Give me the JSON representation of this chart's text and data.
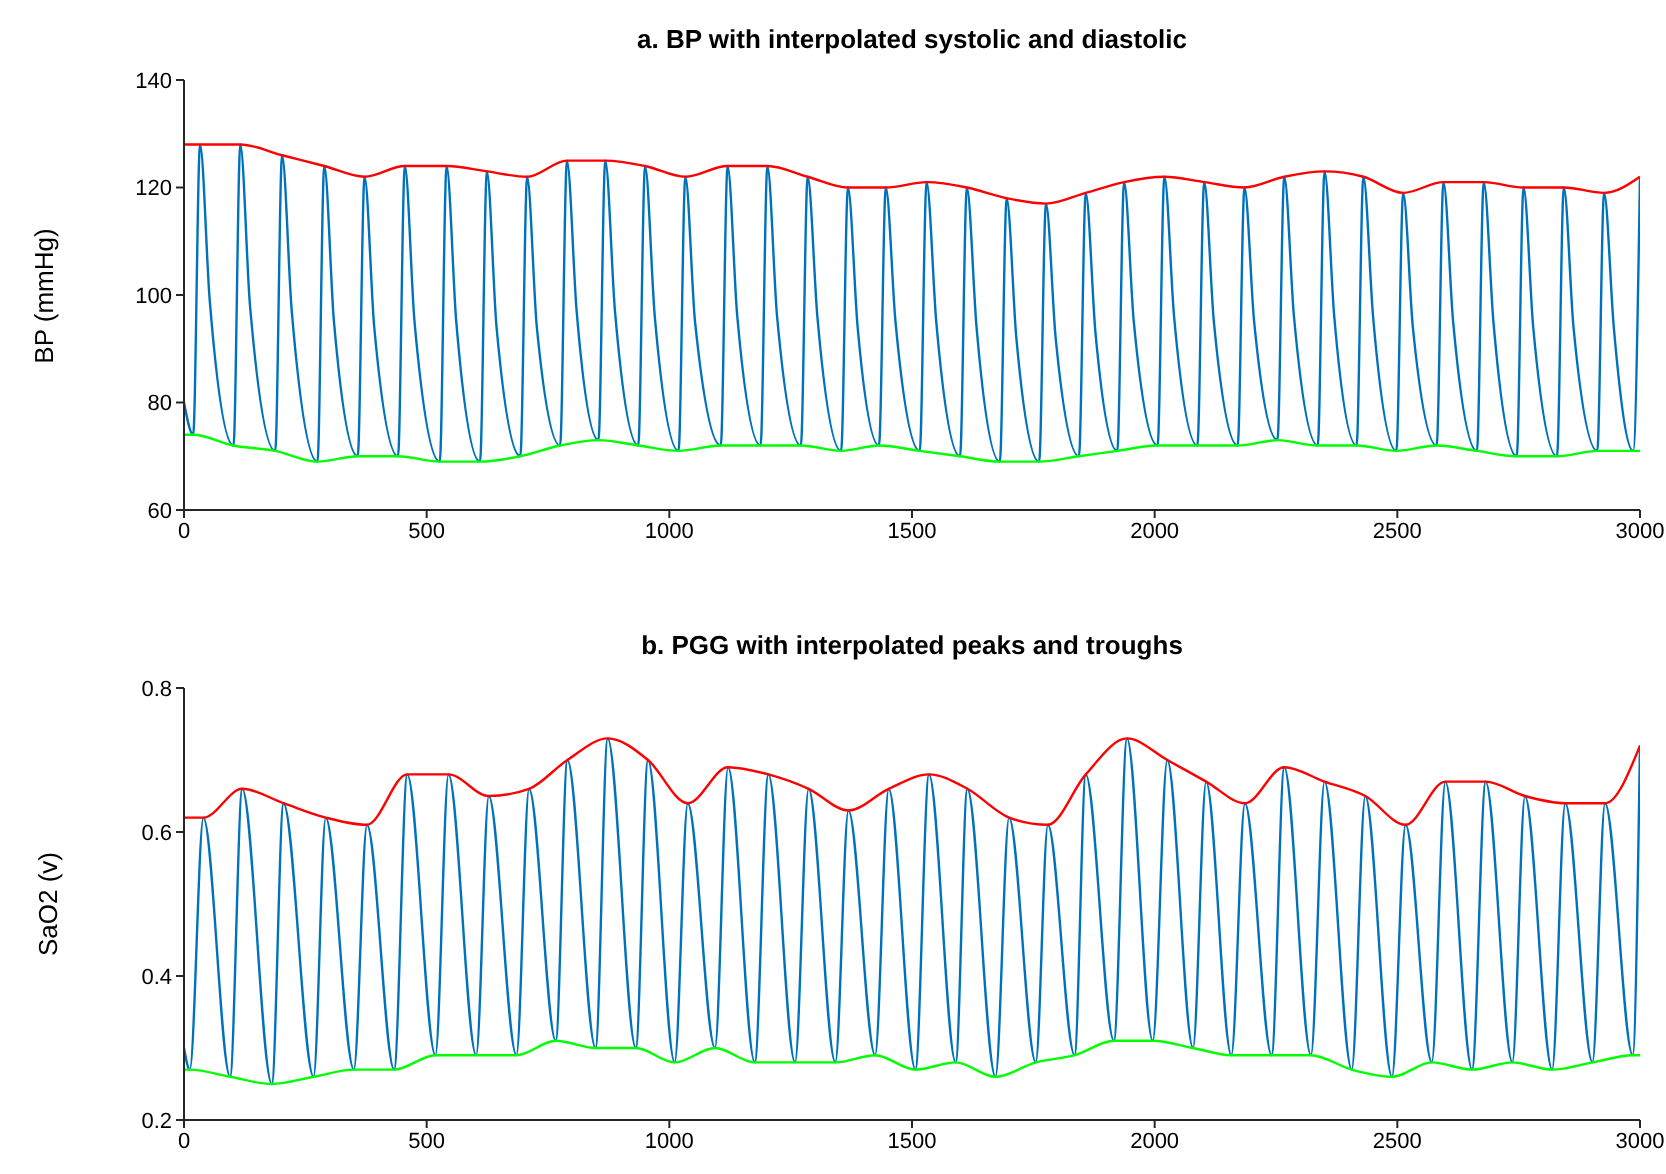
{
  "chart_data": [
    {
      "type": "line",
      "title": "a. BP with interpolated systolic and diastolic",
      "ylabel": "BP (mmHg)",
      "xlim": [
        0,
        3000
      ],
      "xticks": [
        0,
        500,
        1000,
        1500,
        2000,
        2500,
        3000
      ],
      "ylim": [
        60,
        140
      ],
      "yticks": [
        60,
        80,
        100,
        120,
        140
      ],
      "series": [
        {
          "color": "#0072bd",
          "x": [
            0,
            19,
            33,
            53,
            102,
            116,
            136,
            188,
            202,
            222,
            275,
            289,
            309,
            358,
            372,
            392,
            441,
            455,
            475,
            527,
            541,
            561,
            610,
            624,
            644,
            693,
            707,
            727,
            775,
            789,
            809,
            854,
            868,
            888,
            936,
            950,
            970,
            1019,
            1033,
            1053,
            1106,
            1120,
            1140,
            1188,
            1202,
            1222,
            1271,
            1285,
            1305,
            1354,
            1368,
            1388,
            1432,
            1446,
            1466,
            1516,
            1530,
            1550,
            1599,
            1613,
            1633,
            1681,
            1695,
            1715,
            1762,
            1776,
            1796,
            1844,
            1858,
            1878,
            1923,
            1937,
            1957,
            2006,
            2020,
            2040,
            2088,
            2102,
            2122,
            2171,
            2185,
            2205,
            2253,
            2267,
            2287,
            2336,
            2350,
            2370,
            2416,
            2430,
            2450,
            2498,
            2512,
            2532,
            2581,
            2595,
            2615,
            2664,
            2678,
            2698,
            2746,
            2760,
            2780,
            2829,
            2843,
            2863,
            2912,
            2926,
            2946,
            2986,
            3000
          ],
          "values": [
            80,
            74,
            128,
            99,
            72,
            128,
            98,
            71,
            126,
            97,
            69,
            124,
            95,
            70,
            122,
            94,
            70,
            124,
            95,
            69,
            124,
            95,
            69,
            123,
            94,
            70,
            122,
            94,
            72,
            125,
            97,
            73,
            125,
            97,
            72,
            124,
            96,
            71,
            122,
            95,
            72,
            124,
            96,
            72,
            124,
            96,
            72,
            122,
            96,
            71,
            120,
            94,
            72,
            120,
            95,
            71,
            121,
            95,
            70,
            120,
            94,
            69,
            118,
            92,
            69,
            117,
            92,
            70,
            119,
            93,
            71,
            121,
            95,
            72,
            122,
            96,
            72,
            121,
            95,
            72,
            120,
            95,
            73,
            122,
            96,
            72,
            123,
            96,
            72,
            122,
            96,
            71,
            119,
            94,
            72,
            121,
            95,
            71,
            121,
            95,
            70,
            120,
            94,
            70,
            120,
            94,
            71,
            119,
            94,
            71,
            122
          ]
        },
        {
          "color": "#ff0000",
          "x": [
            0,
            33,
            116,
            202,
            289,
            372,
            455,
            541,
            624,
            707,
            789,
            868,
            950,
            1033,
            1120,
            1202,
            1285,
            1368,
            1446,
            1530,
            1613,
            1695,
            1776,
            1858,
            1937,
            2020,
            2102,
            2185,
            2267,
            2350,
            2430,
            2512,
            2595,
            2678,
            2760,
            2843,
            2926,
            3000
          ],
          "values": [
            128,
            128,
            128,
            126,
            124,
            122,
            124,
            124,
            123,
            122,
            125,
            125,
            124,
            122,
            124,
            124,
            122,
            120,
            120,
            121,
            120,
            118,
            117,
            119,
            121,
            122,
            121,
            120,
            122,
            123,
            122,
            119,
            121,
            121,
            120,
            120,
            119,
            122
          ]
        },
        {
          "color": "#00ff00",
          "x": [
            0,
            19,
            102,
            188,
            275,
            358,
            441,
            527,
            610,
            693,
            775,
            854,
            936,
            1019,
            1106,
            1188,
            1271,
            1354,
            1432,
            1516,
            1599,
            1681,
            1762,
            1844,
            1923,
            2006,
            2088,
            2171,
            2253,
            2336,
            2416,
            2498,
            2581,
            2664,
            2746,
            2829,
            2912,
            2986,
            3000
          ],
          "values": [
            74,
            74,
            72,
            71,
            69,
            70,
            70,
            69,
            69,
            70,
            72,
            73,
            72,
            71,
            72,
            72,
            72,
            71,
            72,
            71,
            70,
            69,
            69,
            70,
            71,
            72,
            72,
            72,
            73,
            72,
            72,
            71,
            72,
            71,
            70,
            70,
            71,
            71,
            71
          ]
        }
      ]
    },
    {
      "type": "line",
      "title": "b. PGG with interpolated peaks and troughs",
      "ylabel": "SaO2 (v)",
      "xlim": [
        0,
        3000
      ],
      "xticks": [
        0,
        500,
        1000,
        1500,
        2000,
        2500,
        3000
      ],
      "ylim": [
        0.2,
        0.8
      ],
      "yticks": [
        0.2,
        0.4,
        0.6,
        0.8
      ],
      "series": [
        {
          "color": "#0072bd",
          "x": [
            0,
            12,
            40,
            95,
            120,
            181,
            205,
            267,
            292,
            350,
            377,
            433,
            460,
            518,
            545,
            602,
            628,
            685,
            711,
            766,
            790,
            848,
            873,
            931,
            956,
            1011,
            1038,
            1094,
            1121,
            1176,
            1204,
            1259,
            1287,
            1342,
            1369,
            1424,
            1452,
            1507,
            1535,
            1590,
            1614,
            1672,
            1700,
            1755,
            1780,
            1835,
            1858,
            1916,
            1943,
            1996,
            2026,
            2079,
            2106,
            2158,
            2186,
            2241,
            2267,
            2322,
            2350,
            2406,
            2434,
            2489,
            2517,
            2571,
            2599,
            2654,
            2682,
            2737,
            2763,
            2819,
            2846,
            2902,
            2928,
            2985,
            3000
          ],
          "values": [
            0.3,
            0.27,
            0.62,
            0.26,
            0.66,
            0.25,
            0.64,
            0.26,
            0.62,
            0.27,
            0.61,
            0.27,
            0.68,
            0.29,
            0.68,
            0.29,
            0.65,
            0.29,
            0.66,
            0.31,
            0.7,
            0.3,
            0.73,
            0.3,
            0.7,
            0.28,
            0.64,
            0.3,
            0.69,
            0.28,
            0.68,
            0.28,
            0.66,
            0.28,
            0.63,
            0.29,
            0.66,
            0.27,
            0.68,
            0.28,
            0.66,
            0.26,
            0.62,
            0.28,
            0.61,
            0.29,
            0.68,
            0.31,
            0.73,
            0.31,
            0.7,
            0.3,
            0.67,
            0.29,
            0.64,
            0.29,
            0.69,
            0.29,
            0.67,
            0.27,
            0.65,
            0.26,
            0.61,
            0.28,
            0.67,
            0.27,
            0.67,
            0.28,
            0.65,
            0.27,
            0.64,
            0.28,
            0.64,
            0.29,
            0.72
          ]
        },
        {
          "color": "#ff0000",
          "x": [
            0,
            40,
            120,
            205,
            292,
            377,
            460,
            545,
            628,
            711,
            790,
            873,
            956,
            1038,
            1121,
            1204,
            1287,
            1369,
            1452,
            1535,
            1614,
            1700,
            1780,
            1858,
            1943,
            2026,
            2106,
            2186,
            2267,
            2350,
            2434,
            2517,
            2599,
            2682,
            2763,
            2846,
            2928,
            3000
          ],
          "values": [
            0.62,
            0.62,
            0.66,
            0.64,
            0.62,
            0.61,
            0.68,
            0.68,
            0.65,
            0.66,
            0.7,
            0.73,
            0.7,
            0.64,
            0.69,
            0.68,
            0.66,
            0.63,
            0.66,
            0.68,
            0.66,
            0.62,
            0.61,
            0.68,
            0.73,
            0.7,
            0.67,
            0.64,
            0.69,
            0.67,
            0.65,
            0.61,
            0.67,
            0.67,
            0.65,
            0.64,
            0.64,
            0.72
          ]
        },
        {
          "color": "#00ff00",
          "x": [
            0,
            12,
            95,
            181,
            267,
            350,
            433,
            518,
            602,
            685,
            766,
            848,
            931,
            1011,
            1094,
            1176,
            1259,
            1342,
            1424,
            1507,
            1590,
            1672,
            1755,
            1835,
            1916,
            1996,
            2079,
            2158,
            2241,
            2322,
            2406,
            2489,
            2571,
            2654,
            2737,
            2819,
            2902,
            2985,
            3000
          ],
          "values": [
            0.27,
            0.27,
            0.26,
            0.25,
            0.26,
            0.27,
            0.27,
            0.29,
            0.29,
            0.29,
            0.31,
            0.3,
            0.3,
            0.28,
            0.3,
            0.28,
            0.28,
            0.28,
            0.29,
            0.27,
            0.28,
            0.26,
            0.28,
            0.29,
            0.31,
            0.31,
            0.3,
            0.29,
            0.29,
            0.29,
            0.27,
            0.26,
            0.28,
            0.27,
            0.28,
            0.27,
            0.28,
            0.29,
            0.29
          ]
        }
      ]
    }
  ]
}
